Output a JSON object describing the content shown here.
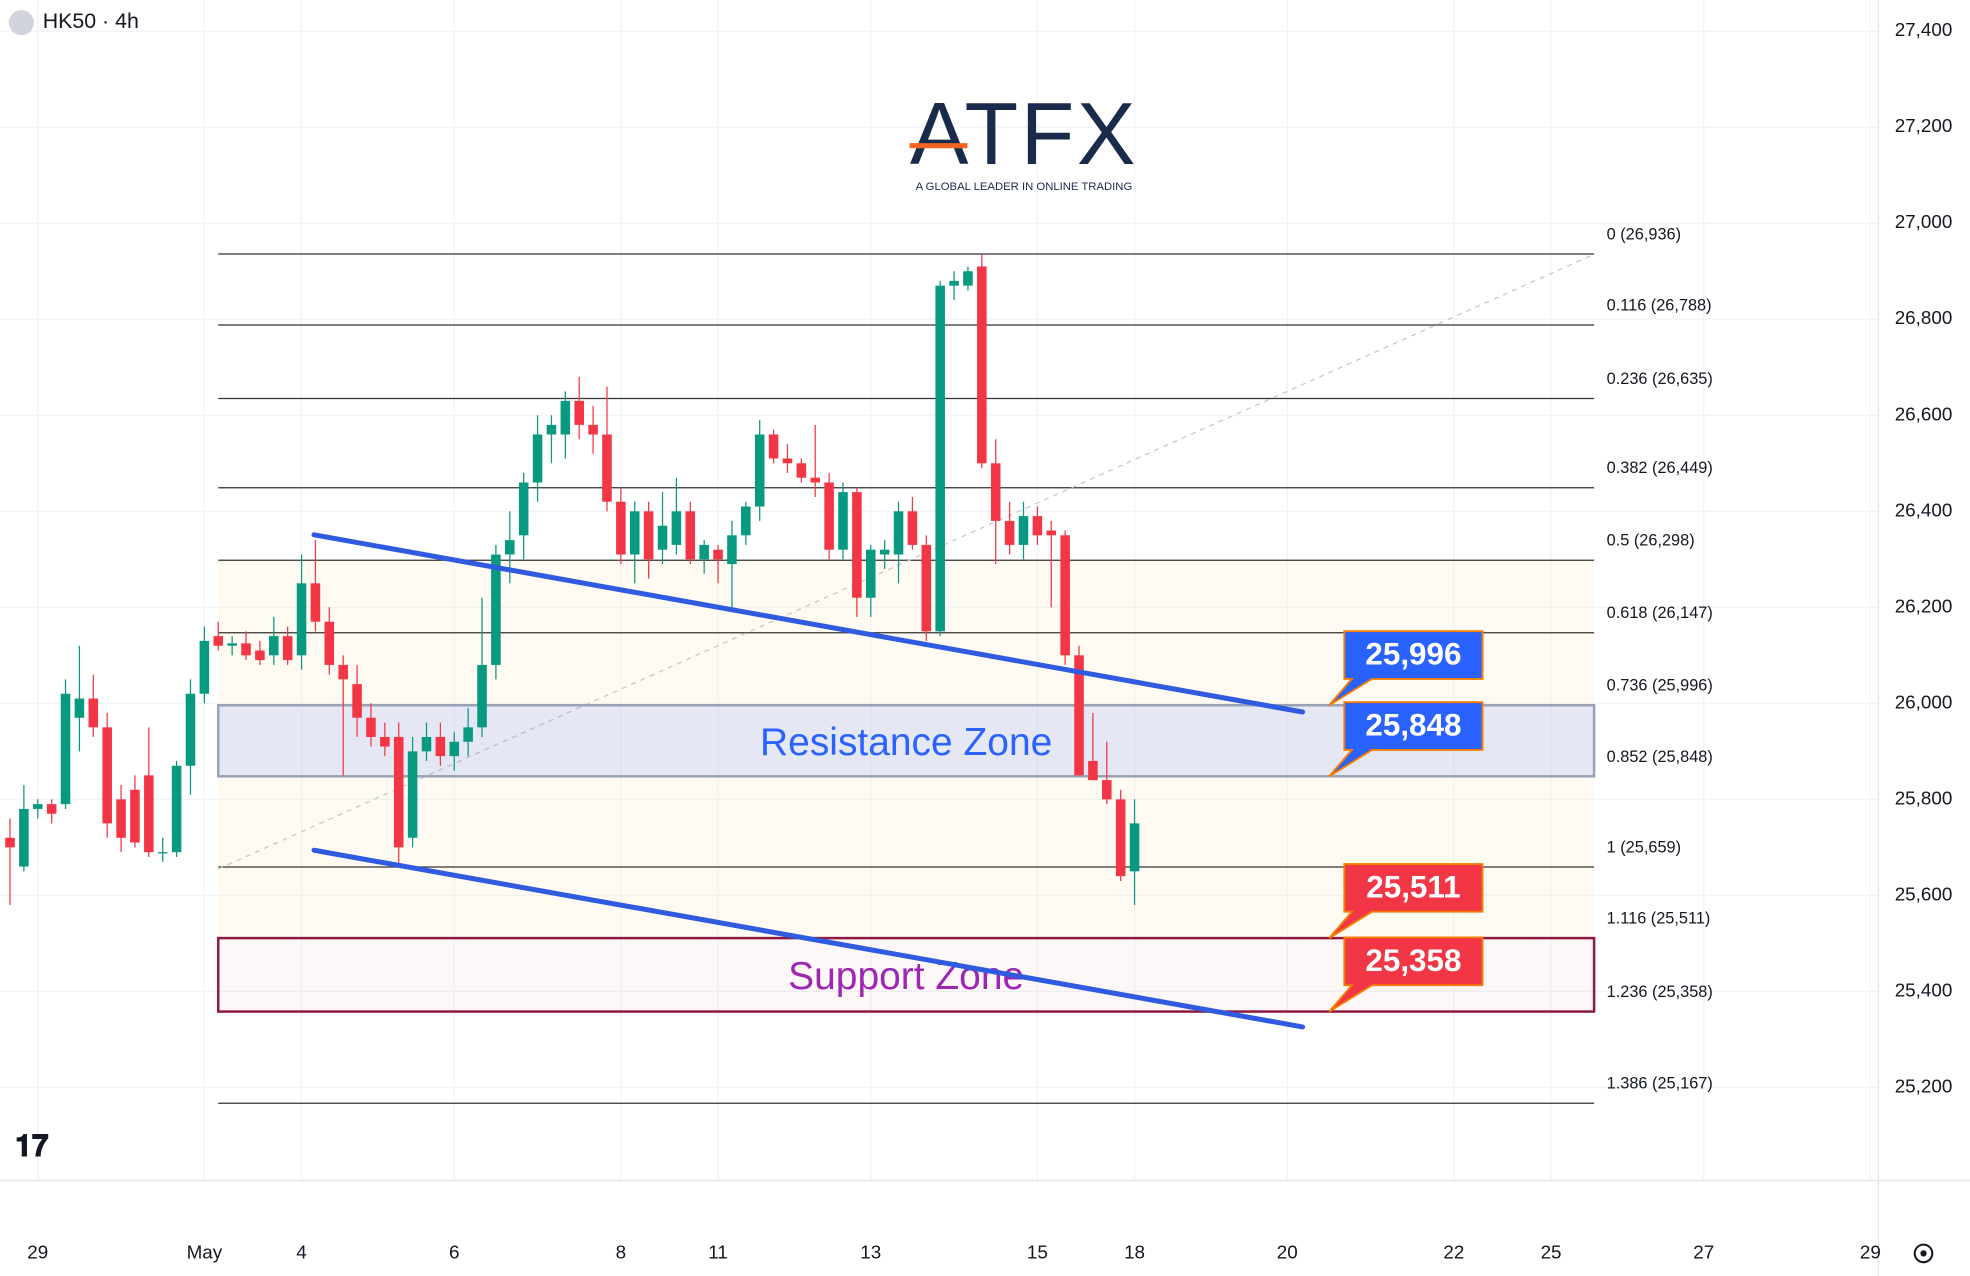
{
  "chart_data": {
    "type": "candlestick",
    "title": "HK50 · 4h",
    "logo": {
      "text": "ATFX",
      "tagline": "A GLOBAL LEADER IN ONLINE TRADING"
    },
    "up_color": "#089981",
    "down_color": "#f23645",
    "open": [
      25720,
      25660,
      25780,
      25790,
      25790,
      25970,
      26010,
      25950,
      25800,
      25820,
      25850,
      25690,
      25690,
      25870,
      26020,
      26140,
      26120,
      26125,
      26110,
      26100,
      26140,
      26100,
      26250,
      26170,
      26080,
      26040,
      25970,
      25930,
      25930,
      25720,
      25900,
      25930,
      25890,
      25920,
      25950,
      26080,
      26310,
      26350,
      26460,
      26560,
      26560,
      26630,
      26580,
      26560,
      26420,
      26310,
      26400,
      26320,
      26330,
      26400,
      26300,
      26320,
      26290,
      26350,
      26410,
      26560,
      26510,
      26500,
      26470,
      26460,
      26320,
      26440,
      26220,
      26310,
      26310,
      26400,
      26330,
      26150,
      26870,
      26870,
      26910,
      26500,
      26380,
      26330,
      26390,
      26360,
      26350,
      26100,
      25880,
      25840,
      25800,
      25650
    ],
    "high": [
      25760,
      25830,
      25800,
      25800,
      26050,
      26120,
      26060,
      25980,
      25830,
      25850,
      25950,
      25720,
      25880,
      26050,
      26160,
      26170,
      26140,
      26150,
      26130,
      26180,
      26160,
      26310,
      26340,
      26200,
      26100,
      26080,
      26000,
      25960,
      25960,
      25930,
      25960,
      25960,
      25940,
      25990,
      26220,
      26330,
      26400,
      26480,
      26600,
      26600,
      26650,
      26680,
      26620,
      26660,
      26450,
      26420,
      26420,
      26440,
      26470,
      26420,
      26340,
      26330,
      26380,
      26420,
      26590,
      26570,
      26540,
      26510,
      26580,
      26480,
      26460,
      26450,
      26330,
      26340,
      26420,
      26430,
      26350,
      26880,
      26900,
      26910,
      26936,
      26550,
      26420,
      26420,
      26410,
      26380,
      26360,
      26120,
      25980,
      25920,
      25820,
      25800
    ],
    "low": [
      25580,
      25650,
      25760,
      25750,
      25780,
      25900,
      25930,
      25720,
      25690,
      25700,
      25680,
      25670,
      25680,
      25810,
      26000,
      26110,
      26100,
      26090,
      26080,
      26080,
      26080,
      26070,
      26150,
      26060,
      25850,
      25930,
      25910,
      25890,
      25660,
      25700,
      25880,
      25870,
      25860,
      25890,
      25930,
      26050,
      26250,
      26300,
      26420,
      26500,
      26510,
      26550,
      26520,
      26400,
      26290,
      26250,
      26260,
      26290,
      26310,
      26290,
      26270,
      26250,
      26200,
      26330,
      26380,
      26500,
      26480,
      26460,
      26430,
      26300,
      26300,
      26180,
      26180,
      26280,
      26250,
      26320,
      26130,
      26140,
      26840,
      26860,
      26490,
      26290,
      26310,
      26300,
      26330,
      26200,
      26080,
      25850,
      25840,
      25790,
      25630,
      25580
    ],
    "close": [
      25700,
      25780,
      25790,
      25770,
      26020,
      26010,
      25950,
      25750,
      25720,
      25710,
      25690,
      25690,
      25870,
      26020,
      26130,
      26120,
      26125,
      26100,
      26090,
      26140,
      26090,
      26250,
      26170,
      26080,
      26050,
      25970,
      25930,
      25910,
      25700,
      25900,
      25930,
      25890,
      25920,
      25950,
      26080,
      26310,
      26340,
      26460,
      26560,
      26580,
      26630,
      26580,
      26560,
      26420,
      26310,
      26400,
      26300,
      26370,
      26400,
      26300,
      26330,
      26300,
      26350,
      26410,
      26560,
      26510,
      26500,
      26470,
      26460,
      26320,
      26440,
      26220,
      26320,
      26320,
      26400,
      26330,
      26150,
      26870,
      26880,
      26900,
      26500,
      26380,
      26330,
      26390,
      26350,
      26350,
      26100,
      25850,
      25840,
      25800,
      25640,
      25750
    ],
    "xlim": [
      -0.72,
      134.57
    ],
    "xticks": [
      {
        "value": 2,
        "label": "29"
      },
      {
        "value": 14,
        "label": "May"
      },
      {
        "value": 21,
        "label": "4"
      },
      {
        "value": 32,
        "label": "6"
      },
      {
        "value": 44,
        "label": "8"
      },
      {
        "value": 51,
        "label": "11"
      },
      {
        "value": 62,
        "label": "13"
      },
      {
        "value": 74,
        "label": "15"
      },
      {
        "value": 81,
        "label": "18"
      },
      {
        "value": 92,
        "label": "20"
      },
      {
        "value": 104,
        "label": "22"
      },
      {
        "value": 111,
        "label": "25"
      },
      {
        "value": 122,
        "label": "27"
      },
      {
        "value": 134,
        "label": "29"
      }
    ],
    "ylim": [
      25006,
      27465
    ],
    "yticks": [
      {
        "value": 25200,
        "label": "25,200"
      },
      {
        "value": 25400,
        "label": "25,400"
      },
      {
        "value": 25600,
        "label": "25,600"
      },
      {
        "value": 25800,
        "label": "25,800"
      },
      {
        "value": 26000,
        "label": "26,000"
      },
      {
        "value": 26200,
        "label": "26,200"
      },
      {
        "value": 26400,
        "label": "26,400"
      },
      {
        "value": 26600,
        "label": "26,600"
      },
      {
        "value": 26800,
        "label": "26,800"
      },
      {
        "value": 27000,
        "label": "27,000"
      },
      {
        "value": 27200,
        "label": "27,200"
      },
      {
        "value": 27400,
        "label": "27,400"
      }
    ],
    "grid": true,
    "fib_levels": [
      {
        "value": 26936,
        "label": "0 (26,936)"
      },
      {
        "value": 26788,
        "label": "0.116 (26,788)"
      },
      {
        "value": 26635,
        "label": "0.236 (26,635)"
      },
      {
        "value": 26449,
        "label": "0.382 (26,449)"
      },
      {
        "value": 26298,
        "label": "0.5 (26,298)"
      },
      {
        "value": 26147,
        "label": "0.618 (26,147)"
      },
      {
        "value": 25996,
        "label": "0.736 (25,996)"
      },
      {
        "value": 25848,
        "label": "0.852 (25,848)"
      },
      {
        "value": 25659,
        "label": "1 (25,659)"
      },
      {
        "value": 25511,
        "label": "1.116 (25,511)"
      },
      {
        "value": 25358,
        "label": "1.236 (25,358)"
      },
      {
        "value": 25167,
        "label": "1.386 (25,167)"
      }
    ],
    "zones": [
      {
        "label": "Resistance Zone",
        "low": 25848,
        "high": 25996,
        "color": "#2962ff",
        "fill": "rgba(41,98,255,0.12)",
        "border": "#9aa3b5"
      },
      {
        "label": "Support Zone",
        "low": 25358,
        "high": 25511,
        "color": "#9c27b0",
        "fill": "rgba(242,54,69,0.04)",
        "border": "#8e1a3f"
      }
    ],
    "callouts": [
      {
        "value": 25996,
        "label": "25,996",
        "color": "#2962ff"
      },
      {
        "value": 25848,
        "label": "25,848",
        "color": "#2962ff"
      },
      {
        "value": 25511,
        "label": "25,511",
        "color": "#f23645"
      },
      {
        "value": 25358,
        "label": "25,358",
        "color": "#f23645"
      }
    ],
    "trendlines": [
      {
        "x": [
          21.9,
          93.1
        ],
        "y": [
          26351,
          25982
        ],
        "color": "#2f5be0"
      },
      {
        "x": [
          21.9,
          93.1
        ],
        "y": [
          25694,
          25326
        ],
        "color": "#2f5be0"
      }
    ],
    "fib_trend": {
      "x": [
        15,
        114
      ],
      "y": [
        25655,
        26934
      ]
    }
  }
}
